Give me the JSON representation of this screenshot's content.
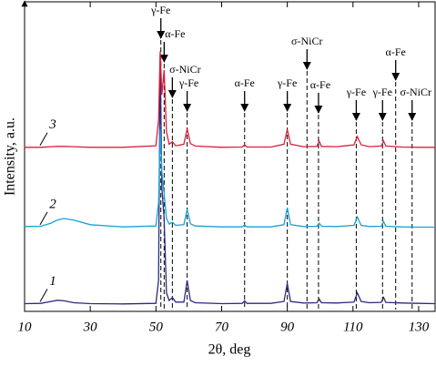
{
  "chart_data": {
    "type": "line",
    "x_label": "2θ, deg",
    "y_label": "Intensity, a.u.",
    "xlim": [
      10,
      135
    ],
    "ylim": [
      0,
      100
    ],
    "xticks": [
      10,
      30,
      50,
      70,
      90,
      110,
      130
    ],
    "x": [
      10,
      15,
      18,
      20,
      22,
      25,
      30,
      40,
      50,
      50.8,
      51.3,
      51.8,
      52.5,
      53.2,
      54,
      55,
      56,
      58.5,
      59.5,
      60.5,
      62,
      70,
      76.3,
      77,
      77.7,
      85,
      89,
      90,
      91,
      95,
      99,
      99.7,
      100.4,
      105,
      110.3,
      111.3,
      112.5,
      115,
      118.6,
      119.3,
      120,
      125,
      130,
      135
    ],
    "series": [
      {
        "name": "1",
        "color": "#2b2b80",
        "values": [
          2.5,
          2.6,
          3.2,
          3.6,
          3.4,
          2.8,
          2.5,
          2.4,
          2.6,
          10,
          83,
          40,
          30,
          6,
          3.5,
          4.5,
          3,
          3,
          10,
          3.5,
          2.8,
          2.5,
          2.6,
          3.4,
          2.6,
          2.6,
          3.2,
          9,
          3.2,
          2.7,
          2.8,
          4,
          2.8,
          2.7,
          3,
          6,
          3.2,
          2.8,
          2.9,
          4.5,
          2.9,
          2.7,
          2.6,
          2.5
        ]
      },
      {
        "name": "2",
        "color": "#1aa0d8",
        "values": [
          27.4,
          27.5,
          28.5,
          29.5,
          30,
          29.5,
          28,
          27.3,
          27.6,
          35,
          59,
          45,
          38,
          30,
          28.2,
          28.8,
          27.8,
          28,
          33,
          28.3,
          27.6,
          27.3,
          27.3,
          27.9,
          27.3,
          27.3,
          28,
          33.5,
          28,
          27.4,
          27.5,
          28.5,
          27.5,
          27.4,
          27.8,
          30.5,
          27.8,
          27.4,
          27.5,
          29,
          27.5,
          27.3,
          27.2,
          27.2
        ]
      },
      {
        "name": "3",
        "color": "#d8203a",
        "values": [
          53,
          53,
          53.2,
          53.3,
          53.3,
          53.2,
          53,
          53,
          53.5,
          62,
          84,
          70,
          78,
          58,
          54,
          54.8,
          53.5,
          54,
          59,
          54.2,
          53.4,
          53,
          53.1,
          53.8,
          53.1,
          53.1,
          54,
          58.8,
          54,
          53.2,
          53.3,
          55,
          53.3,
          53.2,
          53.8,
          56.5,
          53.8,
          53.2,
          53.4,
          55,
          53.4,
          53.1,
          53,
          53
        ]
      }
    ],
    "annotations": [
      {
        "label": "γ-Fe",
        "x": 51.5
      },
      {
        "label": "α-Fe",
        "x": 52.5
      },
      {
        "label": "σ-NiCr",
        "x": 55
      },
      {
        "label": "γ-Fe",
        "x": 59.5
      },
      {
        "label": "α-Fe",
        "x": 77
      },
      {
        "label": "γ-Fe",
        "x": 90
      },
      {
        "label": "σ-NiCr",
        "x": 96
      },
      {
        "label": "α-Fe",
        "x": 99.5
      },
      {
        "label": "γ-Fe",
        "x": 111
      },
      {
        "label": "γ-Fe",
        "x": 119
      },
      {
        "label": "α-Fe",
        "x": 123
      },
      {
        "label": "σ-NiCr",
        "x": 128
      }
    ]
  }
}
